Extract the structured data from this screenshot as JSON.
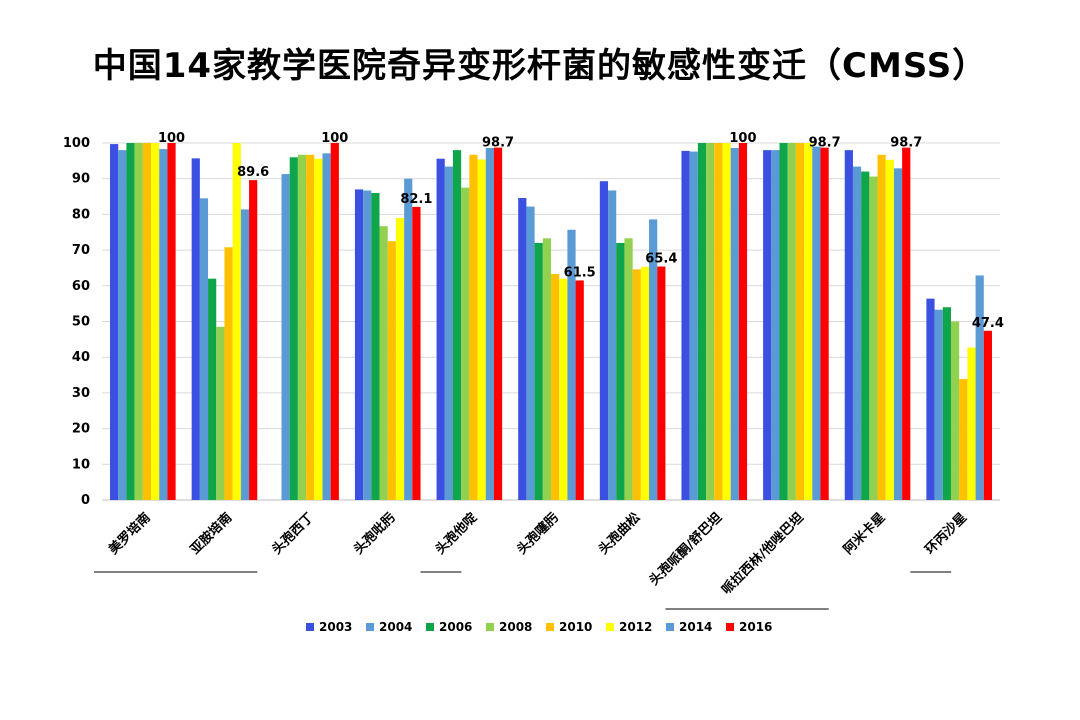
{
  "chart_data": {
    "type": "bar",
    "title": "中国14家教学医院奇异变形杆菌的敏感性变迁（CMSS）",
    "categories": [
      "美罗培南",
      "亚胺培南",
      "头孢西丁",
      "头孢吡肟",
      "头孢他啶",
      "头孢噻肟",
      "头孢曲松",
      "头孢哌酮/舒巴坦",
      "哌拉西林/他唑巴坦",
      "阿米卡星",
      "环丙沙星"
    ],
    "ylim": [
      0,
      100
    ],
    "yticks": [
      0,
      10,
      20,
      30,
      40,
      50,
      60,
      70,
      80,
      90,
      100
    ],
    "grid": true,
    "legend_position": "bottom",
    "series": [
      {
        "name": "2003",
        "color": "#3b4fe0",
        "values": [
          99.7,
          95.7,
          null,
          87,
          95.6,
          84.6,
          89.3,
          97.8,
          98,
          98,
          56.4
        ]
      },
      {
        "name": "2004",
        "color": "#5b9bd5",
        "values": [
          98,
          84.5,
          91.3,
          86.7,
          93.4,
          82.2,
          86.7,
          97.6,
          98,
          93.4,
          53.3
        ]
      },
      {
        "name": "2006",
        "color": "#0fa54a",
        "values": [
          100,
          62,
          96,
          86,
          98,
          72,
          72,
          100,
          100,
          92,
          54
        ]
      },
      {
        "name": "2008",
        "color": "#92d050",
        "values": [
          100,
          48.5,
          96.7,
          76.7,
          87.5,
          73.3,
          73.3,
          100,
          100,
          90.6,
          50
        ]
      },
      {
        "name": "2010",
        "color": "#ffc000",
        "values": [
          100,
          70.8,
          96.7,
          72.5,
          96.7,
          63.3,
          64.6,
          100,
          100,
          96.7,
          33.9
        ]
      },
      {
        "name": "2012",
        "color": "#ffff00",
        "values": [
          100,
          100,
          95.6,
          79,
          95.4,
          62,
          65.3,
          100,
          100,
          95.3,
          42.7
        ]
      },
      {
        "name": "2014",
        "color": "#5b9bd5",
        "values": [
          98.3,
          81.4,
          97.1,
          90,
          98.6,
          75.7,
          78.6,
          98.6,
          99,
          92.9,
          62.9
        ]
      },
      {
        "name": "2016",
        "color": "#ff0000",
        "values": [
          100,
          89.6,
          100,
          82.1,
          98.7,
          61.5,
          65.4,
          100,
          98.7,
          98.7,
          47.4
        ]
      }
    ],
    "data_labels": [
      {
        "category_index": 0,
        "text": "100"
      },
      {
        "category_index": 1,
        "text": "89.6"
      },
      {
        "category_index": 2,
        "text": "100"
      },
      {
        "category_index": 3,
        "text": "82.1"
      },
      {
        "category_index": 4,
        "text": "98.7"
      },
      {
        "category_index": 5,
        "text": "61.5"
      },
      {
        "category_index": 6,
        "text": "65.4"
      },
      {
        "category_index": 7,
        "text": "100"
      },
      {
        "category_index": 8,
        "text": "98.7"
      },
      {
        "category_index": 9,
        "text": "98.7"
      },
      {
        "category_index": 10,
        "text": "47.4"
      }
    ],
    "underline_groups": [
      [
        0,
        1
      ],
      [
        4,
        4
      ],
      [
        7,
        8
      ],
      [
        10,
        10
      ]
    ]
  }
}
